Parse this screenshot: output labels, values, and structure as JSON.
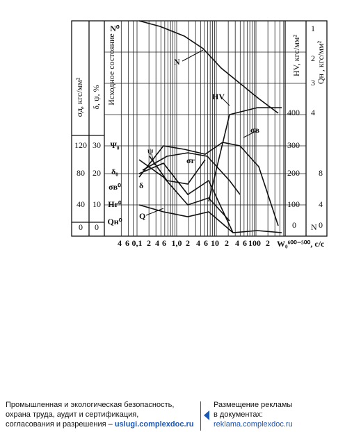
{
  "figure": {
    "left_axis_label": "σд, кгс/мм²",
    "left_ticks": [
      "120",
      "80",
      "40",
      "0"
    ],
    "second_axis_label": "δ, ψ, %",
    "second_ticks": [
      "30",
      "20",
      "10",
      "0"
    ],
    "initial_state_label": "Исходное состояние",
    "symbols": [
      "N⁰",
      "Ψ₀",
      "δ₀",
      "σв⁰",
      "Hr⁰",
      "Qн⁰"
    ],
    "n_ticks": [
      "1",
      "2",
      "3",
      "4"
    ],
    "hv_axis_label": "HV, кгс/мм²",
    "hv_ticks": [
      "400",
      "300",
      "200",
      "100",
      "0"
    ],
    "q_axis_label": "Qн , кгс/мм²",
    "q_ticks": [
      "8",
      "4",
      "0"
    ],
    "n_label": "N",
    "x_ticks": [
      "4",
      "6",
      "0,1",
      "2",
      "4",
      "6",
      "1,0",
      "2",
      "4",
      "6",
      "10",
      "2",
      "4",
      "6",
      "100",
      "2"
    ],
    "x_axis_label": "W₀⁶⁰⁰⁻⁵⁰⁰, c/c",
    "curve_labels": [
      "N",
      "HV",
      "σв",
      "ψ",
      "δ",
      "Q",
      "σr"
    ]
  },
  "footer": {
    "left": [
      "Промышленная и экологическая безопасность,",
      "охрана труда, аудит и сертификация,",
      "согласования и разрешения – "
    ],
    "left_link": "uslugi.complexdoc.ru",
    "right": [
      "Размещение рекламы",
      "в документах:"
    ],
    "right_link": "reklama.complexdoc.ru"
  }
}
